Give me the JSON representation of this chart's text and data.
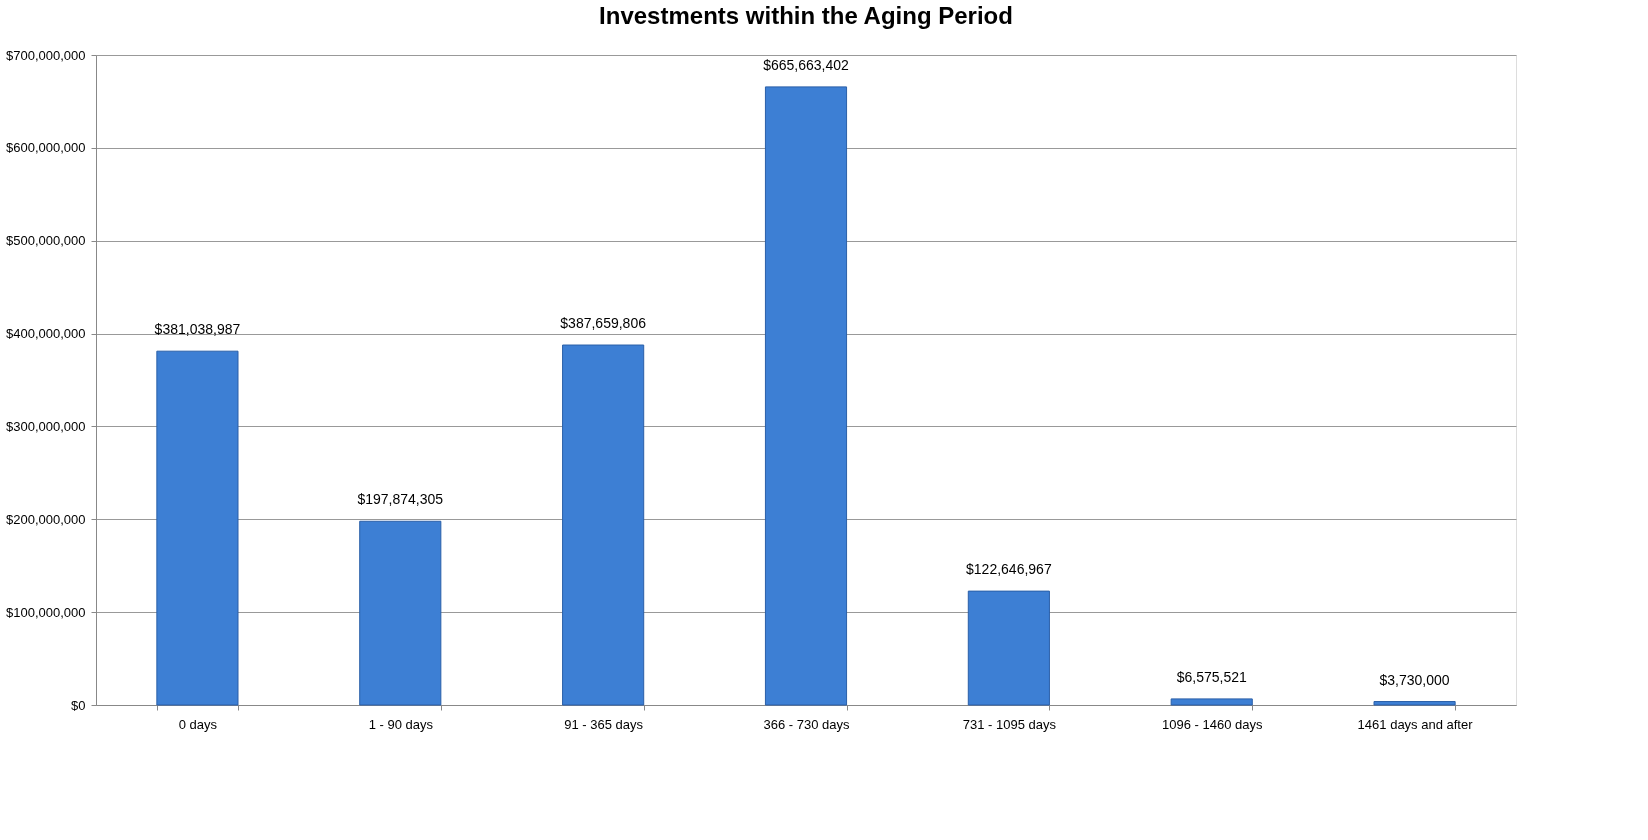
{
  "chart_data": {
    "type": "bar",
    "title": "Investments within the Aging Period",
    "categories": [
      "0 days",
      "1 - 90 days",
      "91 - 365 days",
      "366 - 730 days",
      "731 - 1095 days",
      "1096 - 1460 days",
      "1461 days and after"
    ],
    "values": [
      381038987,
      197874305,
      387659806,
      665663402,
      122646967,
      6575521,
      3730000
    ],
    "value_labels": [
      "$381,038,987",
      "$197,874,305",
      "$387,659,806",
      "$665,663,402",
      "$122,646,967",
      "$6,575,521",
      "$3,730,000"
    ],
    "color": "#3d7fd4",
    "ylim": [
      0,
      700000000
    ],
    "yticks": [
      {
        "value": 0,
        "label": "$0"
      },
      {
        "value": 100000000,
        "label": "$100,000,000"
      },
      {
        "value": 200000000,
        "label": "$200,000,000"
      },
      {
        "value": 300000000,
        "label": "$300,000,000"
      },
      {
        "value": 400000000,
        "label": "$400,000,000"
      },
      {
        "value": 500000000,
        "label": "$500,000,000"
      },
      {
        "value": 600000000,
        "label": "$600,000,000"
      },
      {
        "value": 700000000,
        "label": "$700,000,000"
      }
    ],
    "grid": "y"
  }
}
